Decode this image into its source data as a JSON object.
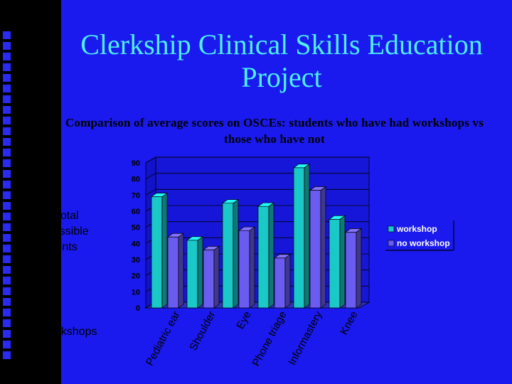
{
  "slide": {
    "title": "Clerkship Clinical Skills Education Project",
    "colors": {
      "background": "#1a1aee",
      "left_strip": "#000000",
      "title": "#4ef0f0"
    }
  },
  "chart_data": {
    "type": "bar",
    "title": "Comparison of average scores on OSCEs: students who have had workshops vs those who have not",
    "ylabel": [
      "% of total",
      "possible",
      "points"
    ],
    "xlabel": "workshops",
    "categories": [
      "Pediatric ear",
      "Shoulder",
      "Eye",
      "Phone triage",
      "Informastery",
      "Knee"
    ],
    "series": [
      {
        "name": "workshop",
        "color": "#1ac8c8",
        "values": [
          69,
          42,
          65,
          63,
          87,
          55
        ]
      },
      {
        "name": "no workshop",
        "color": "#6a5cf0",
        "values": [
          44,
          36,
          48,
          31,
          73,
          47
        ]
      }
    ],
    "ylim": [
      0,
      90
    ],
    "yticks": [
      0,
      10,
      20,
      30,
      40,
      50,
      60,
      70,
      80,
      90
    ],
    "grid": true,
    "legend_position": "right",
    "style": "3d"
  }
}
